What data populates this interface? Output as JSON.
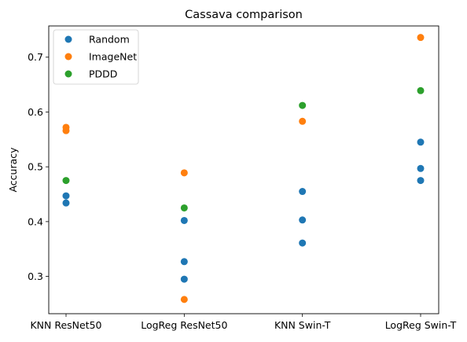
{
  "colors": {
    "Random": "#1f77b4",
    "ImageNet": "#ff7f0e",
    "PDDD": "#2ca02c"
  },
  "chart_data": {
    "type": "scatter",
    "title": "Cassava comparison",
    "xlabel": "",
    "ylabel": "Accuracy",
    "categories": [
      "KNN ResNet50",
      "LogReg ResNet50",
      "KNN Swin-T",
      "LogReg Swin-T"
    ],
    "ylim": [
      0.232,
      0.757
    ],
    "yticks": [
      "0.3",
      "0.4",
      "0.5",
      "0.6",
      "0.7"
    ],
    "grid": false,
    "legend": "top-left",
    "series": [
      {
        "name": "Random",
        "points": [
          {
            "x": "KNN ResNet50",
            "y": 0.447
          },
          {
            "x": "KNN ResNet50",
            "y": 0.434
          },
          {
            "x": "LogReg ResNet50",
            "y": 0.402
          },
          {
            "x": "LogReg ResNet50",
            "y": 0.327
          },
          {
            "x": "LogReg ResNet50",
            "y": 0.295
          },
          {
            "x": "KNN Swin-T",
            "y": 0.455
          },
          {
            "x": "KNN Swin-T",
            "y": 0.403
          },
          {
            "x": "KNN Swin-T",
            "y": 0.361
          },
          {
            "x": "LogReg Swin-T",
            "y": 0.545
          },
          {
            "x": "LogReg Swin-T",
            "y": 0.497
          },
          {
            "x": "LogReg Swin-T",
            "y": 0.475
          }
        ]
      },
      {
        "name": "ImageNet",
        "points": [
          {
            "x": "KNN ResNet50",
            "y": 0.572
          },
          {
            "x": "KNN ResNet50",
            "y": 0.566
          },
          {
            "x": "LogReg ResNet50",
            "y": 0.489
          },
          {
            "x": "LogReg ResNet50",
            "y": 0.258
          },
          {
            "x": "KNN Swin-T",
            "y": 0.583
          },
          {
            "x": "LogReg Swin-T",
            "y": 0.736
          }
        ]
      },
      {
        "name": "PDDD",
        "points": [
          {
            "x": "KNN ResNet50",
            "y": 0.475
          },
          {
            "x": "LogReg ResNet50",
            "y": 0.425
          },
          {
            "x": "KNN Swin-T",
            "y": 0.612
          },
          {
            "x": "LogReg Swin-T",
            "y": 0.639
          }
        ]
      }
    ]
  }
}
